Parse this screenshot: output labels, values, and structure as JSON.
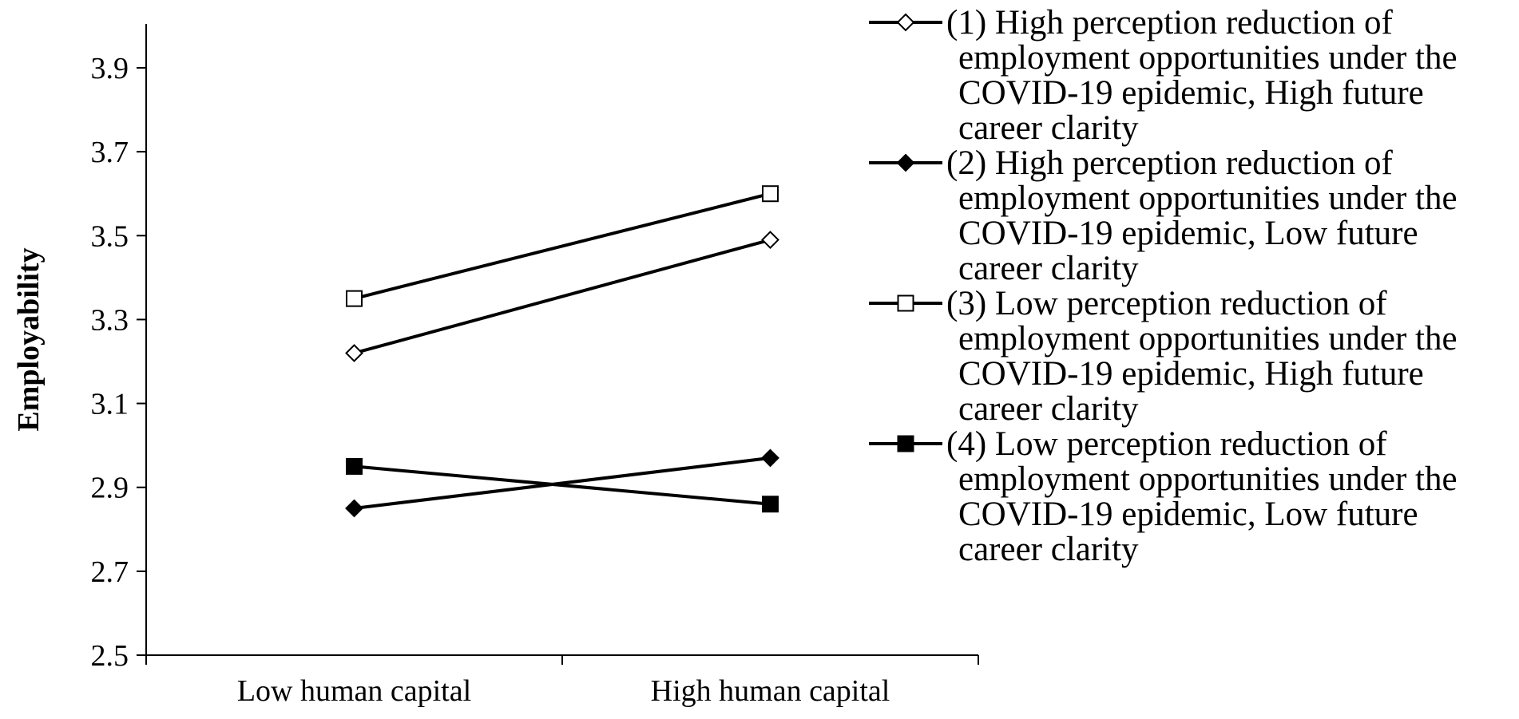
{
  "chart_data": {
    "type": "line",
    "title": "",
    "xlabel": "",
    "ylabel": "Employability",
    "categories": [
      "Low human capital",
      "High human capital"
    ],
    "ylim": [
      2.5,
      4.0
    ],
    "yticks": [
      "2.5",
      "2.7",
      "2.9",
      "3.1",
      "3.3",
      "3.5",
      "3.7",
      "3.9"
    ],
    "grid": false,
    "legend_position": "right",
    "series": [
      {
        "name": "(1) High perception reduction of employment opportunities under the COVID-19 epidemic, High future career clarity",
        "legend_lines": [
          "(1) High perception reduction of",
          "employment opportunities under the",
          "COVID-19 epidemic, High future",
          "career clarity"
        ],
        "marker": "diamond-open",
        "values": [
          3.22,
          3.49
        ]
      },
      {
        "name": "(2) High perception reduction of employment opportunities under the COVID-19 epidemic, Low future career clarity",
        "legend_lines": [
          "(2) High perception reduction of",
          "employment opportunities under the",
          "COVID-19 epidemic, Low future",
          "career clarity"
        ],
        "marker": "diamond-filled",
        "values": [
          2.85,
          2.97
        ]
      },
      {
        "name": "(3) Low perception reduction of employment opportunities under the COVID-19 epidemic, High future career clarity",
        "legend_lines": [
          "(3) Low perception reduction of",
          "employment opportunities under the",
          "COVID-19 epidemic, High future",
          "career clarity"
        ],
        "marker": "square-open",
        "values": [
          3.35,
          3.6
        ]
      },
      {
        "name": "(4) Low perception reduction of employment opportunities under the COVID-19 epidemic, Low future career clarity",
        "legend_lines": [
          "(4) Low perception reduction of",
          "employment opportunities under the",
          "COVID-19 epidemic, Low future",
          "career clarity"
        ],
        "marker": "square-filled",
        "values": [
          2.95,
          2.86
        ]
      }
    ],
    "colors": {
      "line": "#000000",
      "background": "#ffffff"
    }
  }
}
